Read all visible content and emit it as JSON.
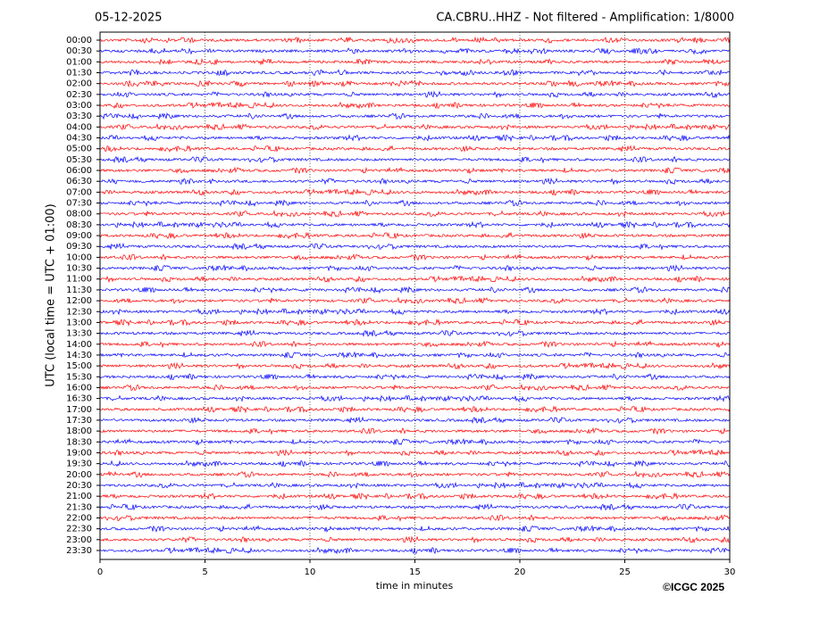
{
  "chart_data": {
    "type": "helicorder",
    "date": "05-12-2025",
    "title": "CA.CBRU..HHZ - Not filtered - Amplification: 1/8000",
    "ylabel": "UTC (local time = UTC + 01:00)",
    "xlabel": "time in minutes",
    "copyright": "©ICGC 2025",
    "categories": [
      "00:00",
      "00:30",
      "01:00",
      "01:30",
      "02:00",
      "02:30",
      "03:00",
      "03:30",
      "04:00",
      "04:30",
      "05:00",
      "05:30",
      "06:00",
      "06:30",
      "07:00",
      "07:30",
      "08:00",
      "08:30",
      "09:00",
      "09:30",
      "10:00",
      "10:30",
      "11:00",
      "11:30",
      "12:00",
      "12:30",
      "13:00",
      "13:30",
      "14:00",
      "14:30",
      "15:00",
      "15:30",
      "16:00",
      "16:30",
      "17:00",
      "17:30",
      "18:00",
      "18:30",
      "19:00",
      "19:30",
      "20:00",
      "20:30",
      "21:00",
      "21:30",
      "22:00",
      "22:30",
      "23:00",
      "23:30"
    ],
    "colors": [
      "#ff0000",
      "#0000ff"
    ],
    "xlim": [
      0,
      30
    ],
    "xticks": [
      0,
      5,
      10,
      15,
      20,
      25,
      30
    ],
    "grid": true
  }
}
